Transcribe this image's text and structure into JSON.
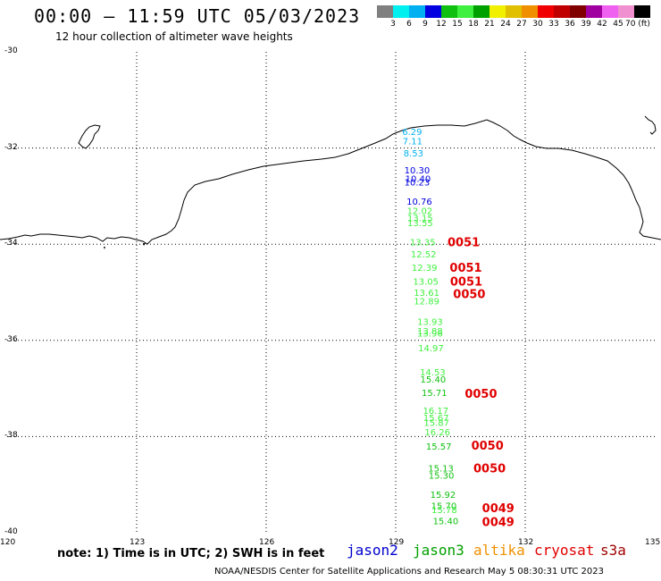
{
  "title": "00:00 — 11:59 UTC 05/03/2023",
  "subtitle": "12 hour collection of altimeter wave heights",
  "colorbar": {
    "colors": [
      "#808080",
      "#00f0f0",
      "#00b0f0",
      "#0000e0",
      "#10c010",
      "#40f040",
      "#00a000",
      "#f0f000",
      "#e0c000",
      "#f09000",
      "#f00000",
      "#c00000",
      "#800000",
      "#a000a0",
      "#f060f0",
      "#f090d0",
      "#000000"
    ],
    "labels": [
      "3",
      "6",
      "9",
      "12",
      "15",
      "18",
      "21",
      "24",
      "27",
      "30",
      "33",
      "36",
      "39",
      "42",
      "45",
      "70 (ft)"
    ]
  },
  "axes": {
    "y_labels": [
      "-30",
      "-32",
      "-34",
      "-36",
      "-38",
      "-40"
    ],
    "x_labels": [
      "120",
      "123",
      "126",
      "129",
      "132",
      "135"
    ]
  },
  "wave_obs": [
    {
      "v": "6.29",
      "c": "#00b0f0",
      "lat": -31.65,
      "lon": 129.15
    },
    {
      "v": "7.11",
      "c": "#00b0f0",
      "lat": -31.85,
      "lon": 129.16
    },
    {
      "v": "8.53",
      "c": "#00b0f0",
      "lat": -32.1,
      "lon": 129.18
    },
    {
      "v": "10.30",
      "c": "#0000e0",
      "lat": -32.45,
      "lon": 129.2
    },
    {
      "v": "10.40",
      "c": "#0000e0",
      "lat": -32.63,
      "lon": 129.22
    },
    {
      "v": "10.23",
      "c": "#0000e0",
      "lat": -32.7,
      "lon": 129.2
    },
    {
      "v": "10.76",
      "c": "#0000e0",
      "lat": -33.1,
      "lon": 129.25
    },
    {
      "v": "12.02",
      "c": "#40f040",
      "lat": -33.3,
      "lon": 129.26
    },
    {
      "v": "13.15",
      "c": "#40f040",
      "lat": -33.45,
      "lon": 129.27
    },
    {
      "v": "13.55",
      "c": "#40f040",
      "lat": -33.55,
      "lon": 129.27
    },
    {
      "v": "13.35",
      "c": "#40f040",
      "lat": -33.95,
      "lon": 129.33
    },
    {
      "v": "12.52",
      "c": "#40f040",
      "lat": -34.2,
      "lon": 129.35
    },
    {
      "v": "12.39",
      "c": "#40f040",
      "lat": -34.48,
      "lon": 129.37
    },
    {
      "v": "13.05",
      "c": "#40f040",
      "lat": -34.77,
      "lon": 129.4
    },
    {
      "v": "13.61",
      "c": "#40f040",
      "lat": -35.0,
      "lon": 129.42
    },
    {
      "v": "12.89",
      "c": "#40f040",
      "lat": -35.18,
      "lon": 129.42
    },
    {
      "v": "13.93",
      "c": "#40f040",
      "lat": -35.6,
      "lon": 129.5
    },
    {
      "v": "13.88",
      "c": "#40f040",
      "lat": -35.8,
      "lon": 129.5
    },
    {
      "v": "13.96",
      "c": "#40f040",
      "lat": -35.85,
      "lon": 129.5
    },
    {
      "v": "14.97",
      "c": "#40f040",
      "lat": -36.15,
      "lon": 129.52
    },
    {
      "v": "14.53",
      "c": "#40f040",
      "lat": -36.65,
      "lon": 129.56
    },
    {
      "v": "15.40",
      "c": "#10c010",
      "lat": -36.8,
      "lon": 129.57
    },
    {
      "v": "15.71",
      "c": "#10c010",
      "lat": -37.08,
      "lon": 129.6
    },
    {
      "v": "16.17",
      "c": "#40f040",
      "lat": -37.45,
      "lon": 129.63
    },
    {
      "v": "15.67",
      "c": "#40f040",
      "lat": -37.6,
      "lon": 129.64
    },
    {
      "v": "15.87",
      "c": "#40f040",
      "lat": -37.7,
      "lon": 129.65
    },
    {
      "v": "16.26",
      "c": "#40f040",
      "lat": -37.9,
      "lon": 129.67
    },
    {
      "v": "15.57",
      "c": "#10c010",
      "lat": -38.2,
      "lon": 129.7
    },
    {
      "v": "15.13",
      "c": "#10c010",
      "lat": -38.65,
      "lon": 129.75
    },
    {
      "v": "15.30",
      "c": "#10c010",
      "lat": -38.8,
      "lon": 129.76
    },
    {
      "v": "15.92",
      "c": "#10c010",
      "lat": -39.2,
      "lon": 129.8
    },
    {
      "v": "15.70",
      "c": "#10c010",
      "lat": -39.43,
      "lon": 129.82
    },
    {
      "v": "15.78",
      "c": "#40f040",
      "lat": -39.52,
      "lon": 129.83
    },
    {
      "v": "15.40",
      "c": "#10c010",
      "lat": -39.75,
      "lon": 129.86
    }
  ],
  "time_marks": [
    {
      "t": "0051",
      "lat": -33.95,
      "lon": 130.2
    },
    {
      "t": "0051",
      "lat": -34.48,
      "lon": 130.25
    },
    {
      "t": "0051",
      "lat": -34.77,
      "lon": 130.26
    },
    {
      "t": "0050",
      "lat": -35.03,
      "lon": 130.33
    },
    {
      "t": "0050",
      "lat": -37.1,
      "lon": 130.6
    },
    {
      "t": "0050",
      "lat": -38.18,
      "lon": 130.75
    },
    {
      "t": "0050",
      "lat": -38.65,
      "lon": 130.8
    },
    {
      "t": "0049",
      "lat": -39.48,
      "lon": 131.0
    },
    {
      "t": "0049",
      "lat": -39.77,
      "lon": 131.0
    }
  ],
  "time_mark_color": "#e00000",
  "note": "note: 1) Time is in UTC; 2) SWH is in feet",
  "satellites": [
    {
      "name": "jason2",
      "color": "#0000d0"
    },
    {
      "name": "jason3",
      "color": "#00a000"
    },
    {
      "name": "altika",
      "color": "#f09000"
    },
    {
      "name": "cryosat",
      "color": "#e00000"
    },
    {
      "name": "s3a",
      "color": "#a00000"
    }
  ],
  "footer": "NOAA/NESDIS Center for Satellite Applications and Research   May  5 08:30:31 UTC 2023"
}
